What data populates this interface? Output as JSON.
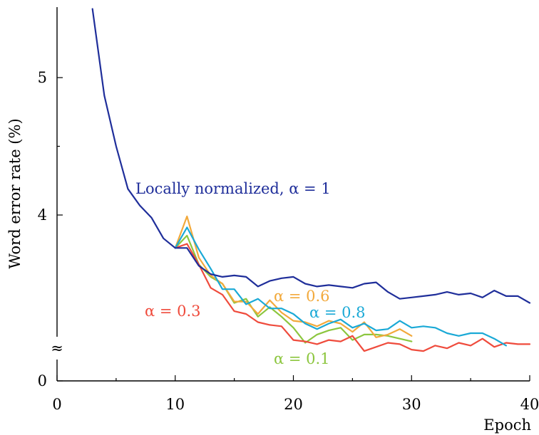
{
  "chart_data": {
    "type": "line",
    "xlabel": "Epoch",
    "ylabel": "Word error rate (%)",
    "xlim": [
      0,
      40
    ],
    "ylim": [
      0,
      5.5
    ],
    "y_axis_broken": true,
    "break_marker": "≈",
    "x_ticks": [
      0,
      10,
      20,
      30,
      40
    ],
    "x_tick_labels": [
      "0",
      "10",
      "20",
      "30",
      "40"
    ],
    "y_ticks": [
      0,
      4,
      5
    ],
    "y_tick_labels": [
      "0",
      "4",
      "5"
    ],
    "series": [
      {
        "name": "Locally normalized, α = 1",
        "color": "#1f2e9a",
        "x": [
          3,
          4,
          5,
          6,
          7,
          8,
          9,
          10,
          11,
          12,
          13,
          14,
          15,
          16,
          17,
          18,
          19,
          20,
          21,
          22,
          23,
          24,
          25,
          26,
          27,
          28,
          29,
          30,
          31,
          32,
          33,
          34,
          35,
          36,
          37,
          38,
          39,
          40
        ],
        "y": [
          5.5,
          4.87,
          4.5,
          4.19,
          4.07,
          3.98,
          3.83,
          3.76,
          3.76,
          3.63,
          3.57,
          3.55,
          3.56,
          3.55,
          3.48,
          3.52,
          3.54,
          3.55,
          3.5,
          3.48,
          3.49,
          3.48,
          3.47,
          3.5,
          3.51,
          3.44,
          3.39,
          3.4,
          3.41,
          3.42,
          3.44,
          3.42,
          3.43,
          3.4,
          3.45,
          3.41,
          3.41,
          3.36
        ]
      },
      {
        "name": "α = 0.8",
        "color": "#1aa9d6",
        "x": [
          10,
          11,
          12,
          13,
          14,
          15,
          16,
          17,
          18,
          19,
          20,
          21,
          22,
          23,
          24,
          25,
          26,
          27,
          28,
          29,
          30,
          31,
          32,
          33,
          34,
          35,
          36,
          37,
          38
        ],
        "y": [
          3.76,
          3.91,
          3.75,
          3.61,
          3.46,
          3.46,
          3.35,
          3.39,
          3.32,
          3.32,
          3.28,
          3.21,
          3.17,
          3.21,
          3.24,
          3.18,
          3.21,
          3.16,
          3.17,
          3.23,
          3.18,
          3.19,
          3.18,
          3.14,
          3.12,
          3.14,
          3.14,
          3.1,
          3.05
        ]
      },
      {
        "name": "α = 0.6",
        "color": "#f2a93b",
        "x": [
          10,
          11,
          12,
          13,
          14,
          15,
          16,
          17,
          18,
          19,
          20,
          21,
          22,
          23,
          24,
          25,
          26,
          27,
          28,
          29,
          30
        ],
        "y": [
          3.76,
          3.99,
          3.69,
          3.56,
          3.5,
          3.37,
          3.37,
          3.28,
          3.38,
          3.29,
          3.23,
          3.22,
          3.19,
          3.23,
          3.21,
          3.15,
          3.22,
          3.11,
          3.13,
          3.17,
          3.12
        ]
      },
      {
        "name": "α = 0.3",
        "color": "#ef4b3c",
        "x": [
          10,
          11,
          12,
          13,
          14,
          15,
          16,
          17,
          18,
          19,
          20,
          21,
          22,
          23,
          24,
          25,
          26,
          27,
          28,
          29,
          30,
          31,
          32,
          33,
          34,
          35,
          36,
          37,
          38,
          39,
          40
        ],
        "y": [
          3.76,
          3.79,
          3.64,
          3.47,
          3.42,
          3.3,
          3.28,
          3.22,
          3.2,
          3.19,
          3.09,
          3.08,
          3.06,
          3.09,
          3.08,
          3.12,
          3.01,
          3.04,
          3.07,
          3.06,
          3.02,
          3.01,
          3.05,
          3.03,
          3.07,
          3.05,
          3.1,
          3.04,
          3.07,
          3.06,
          3.06
        ]
      },
      {
        "name": "α = 0.1",
        "color": "#8cc63e",
        "x": [
          10,
          11,
          12,
          13,
          14,
          15,
          16,
          17,
          18,
          19,
          20,
          21,
          22,
          23,
          24,
          25,
          26,
          27,
          28,
          29,
          30
        ],
        "y": [
          3.76,
          3.85,
          3.64,
          3.55,
          3.5,
          3.36,
          3.39,
          3.26,
          3.33,
          3.26,
          3.18,
          3.07,
          3.13,
          3.16,
          3.18,
          3.09,
          3.13,
          3.13,
          3.12,
          3.1,
          3.08
        ]
      }
    ]
  },
  "labels": {
    "locally_normalized": "Locally normalized, α = 1",
    "alpha_08": "α = 0.8",
    "alpha_06": "α = 0.6",
    "alpha_03": "α = 0.3",
    "alpha_01": "α = 0.1"
  }
}
